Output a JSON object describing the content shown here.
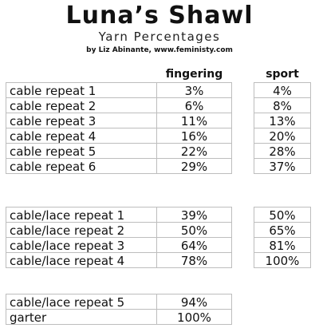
{
  "header": {
    "title": "Luna’s Shawl",
    "subtitle": "Yarn Percentages",
    "byline": "by Liz Abinante, www.feministy.com"
  },
  "columns": {
    "fingering": "fingering",
    "sport": "sport"
  },
  "groups": [
    {
      "rows": [
        {
          "label": "cable repeat 1",
          "fingering": "3%",
          "sport": "4%"
        },
        {
          "label": "cable repeat 2",
          "fingering": "6%",
          "sport": "8%"
        },
        {
          "label": "cable repeat 3",
          "fingering": "11%",
          "sport": "13%"
        },
        {
          "label": "cable repeat 4",
          "fingering": "16%",
          "sport": "20%"
        },
        {
          "label": "cable repeat 5",
          "fingering": "22%",
          "sport": "28%"
        },
        {
          "label": "cable repeat 6",
          "fingering": "29%",
          "sport": "37%"
        }
      ]
    },
    {
      "rows": [
        {
          "label": "cable/lace repeat 1",
          "fingering": "39%",
          "sport": "50%"
        },
        {
          "label": "cable/lace repeat 2",
          "fingering": "50%",
          "sport": "65%"
        },
        {
          "label": "cable/lace repeat 3",
          "fingering": "64%",
          "sport": "81%"
        },
        {
          "label": "cable/lace repeat 4",
          "fingering": "78%",
          "sport": "100%"
        }
      ]
    },
    {
      "rows": [
        {
          "label": "cable/lace repeat 5",
          "fingering": "94%"
        },
        {
          "label": "garter",
          "fingering": "100%"
        }
      ]
    }
  ]
}
